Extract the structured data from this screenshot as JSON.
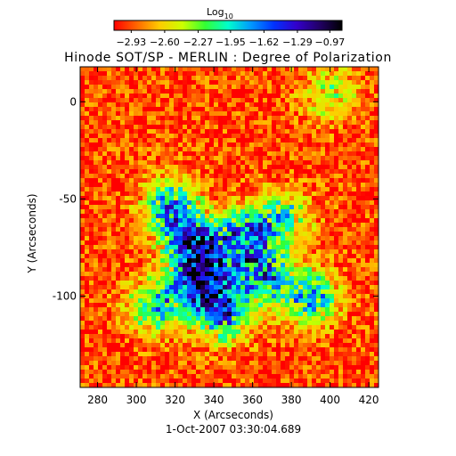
{
  "chart_data": {
    "type": "heatmap",
    "title": "Hinode SOT/SP - MERLIN : Degree of Polarization",
    "xlabel": "X (Arcseconds)",
    "ylabel": "Y (Arcseconds)",
    "footer": "1-Oct-2007 03:30:04.689",
    "xlim": [
      271,
      425
    ],
    "ylim": [
      -147,
      18
    ],
    "x_ticks": [
      280,
      300,
      320,
      340,
      360,
      380,
      400,
      420
    ],
    "y_ticks": [
      0,
      -50,
      -100
    ],
    "colorbar": {
      "label_base": "Log",
      "label_sub": "10",
      "min": -3.1,
      "max": -0.85,
      "ticks": [
        -2.93,
        -2.6,
        -2.27,
        -1.95,
        -1.62,
        -1.29,
        -0.97
      ],
      "tick_labels": [
        "−2.93",
        "−2.60",
        "−2.27",
        "−1.95",
        "−1.62",
        "−1.29",
        "−0.97"
      ],
      "colors": [
        "#ff0000",
        "#ff6600",
        "#ffcc00",
        "#ccff00",
        "#33ff33",
        "#00ffcc",
        "#0099ff",
        "#0033ff",
        "#3300cc",
        "#220066",
        "#000000"
      ]
    },
    "field": {
      "background": -2.95,
      "blobs": [
        {
          "x": 330,
          "y": -75,
          "strength": 1.6
        },
        {
          "x": 335,
          "y": -95,
          "strength": 1.7
        },
        {
          "x": 318,
          "y": -55,
          "strength": 1.2
        },
        {
          "x": 355,
          "y": -70,
          "strength": 1.3
        },
        {
          "x": 365,
          "y": -90,
          "strength": 1.2
        },
        {
          "x": 390,
          "y": -100,
          "strength": 1.1
        },
        {
          "x": 310,
          "y": -105,
          "strength": 1.0
        },
        {
          "x": 375,
          "y": -60,
          "strength": 0.9
        },
        {
          "x": 400,
          "y": 5,
          "strength": 0.6
        },
        {
          "x": 345,
          "y": -110,
          "strength": 1.0
        }
      ]
    }
  }
}
